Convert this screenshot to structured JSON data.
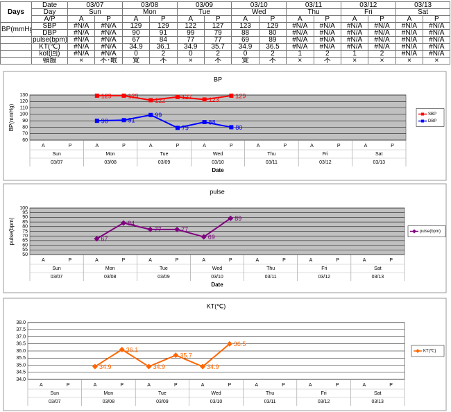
{
  "table": {
    "corner": "Days",
    "bp_label": "BP(mmHg)",
    "rows": [
      {
        "label": "Date",
        "cells": [
          "03/07",
          "03/08",
          "03/09",
          "03/10",
          "03/11",
          "03/12",
          "03/13"
        ]
      },
      {
        "label": "Day",
        "cells": [
          "Sun",
          "Mon",
          "Tue",
          "Wed",
          "Thu",
          "Fri",
          "Sat"
        ]
      },
      {
        "label": "A/P",
        "cells": [
          "A",
          "P",
          "A",
          "P",
          "A",
          "P",
          "A",
          "P",
          "A",
          "P",
          "A",
          "P",
          "A",
          "P"
        ]
      },
      {
        "label": "SBP",
        "cells": [
          "#N/A",
          "#N/A",
          "129",
          "129",
          "122",
          "127",
          "123",
          "129",
          "#N/A",
          "#N/A",
          "#N/A",
          "#N/A",
          "#N/A",
          "#N/A"
        ]
      },
      {
        "label": "DBP",
        "cells": [
          "#N/A",
          "#N/A",
          "90",
          "91",
          "99",
          "79",
          "88",
          "80",
          "#N/A",
          "#N/A",
          "#N/A",
          "#N/A",
          "#N/A",
          "#N/A"
        ]
      },
      {
        "label": "pulse(bpm)",
        "cells": [
          "#N/A",
          "#N/A",
          "67",
          "84",
          "77",
          "77",
          "69",
          "89",
          "#N/A",
          "#N/A",
          "#N/A",
          "#N/A",
          "#N/A",
          "#N/A"
        ]
      },
      {
        "label": "KT(℃)",
        "cells": [
          "#N/A",
          "#N/A",
          "34.9",
          "36.1",
          "34.9",
          "35.7",
          "34.9",
          "36.5",
          "#N/A",
          "#N/A",
          "#N/A",
          "#N/A",
          "#N/A",
          "#N/A"
        ]
      },
      {
        "label": "kot(回)",
        "cells": [
          "#N/A",
          "#N/A",
          "0",
          "2",
          "0",
          "2",
          "0",
          "2",
          "1",
          "2",
          "1",
          "2",
          "#N/A",
          "#N/A"
        ]
      },
      {
        "label": "頓服",
        "cells": [
          "×",
          "不･眠",
          "覚",
          "不",
          "×",
          "不",
          "覚",
          "不",
          "×",
          "不",
          "×",
          "×",
          "×",
          "×"
        ]
      }
    ]
  },
  "chart_data": [
    {
      "type": "line",
      "title": "BP",
      "ylabel": "BP(mmHg)",
      "xlabel": "Date",
      "categories": [
        "A",
        "P",
        "A",
        "P",
        "A",
        "P",
        "A",
        "P",
        "A",
        "P",
        "A",
        "P",
        "A",
        "P"
      ],
      "days": [
        "Sun",
        "Mon",
        "Tue",
        "Wed",
        "Thu",
        "Fri",
        "Sat"
      ],
      "dates": [
        "03/07",
        "03/08",
        "03/09",
        "03/10",
        "03/11",
        "03/12",
        "03/13"
      ],
      "series": [
        {
          "name": "SBP",
          "color": "#ff0000",
          "marker": "square",
          "values": [
            null,
            null,
            129,
            129,
            122,
            127,
            123,
            129,
            null,
            null,
            null,
            null,
            null,
            null
          ]
        },
        {
          "name": "DBP",
          "color": "#0000ff",
          "marker": "square",
          "values": [
            null,
            null,
            90,
            91,
            99,
            79,
            88,
            80,
            null,
            null,
            null,
            null,
            null,
            null
          ]
        }
      ],
      "ylim": [
        60,
        130
      ],
      "yticks": [
        60,
        70,
        80,
        90,
        100,
        110,
        120,
        130
      ],
      "grid": true,
      "background": "#c0c0c0",
      "legend": "right"
    },
    {
      "type": "line",
      "title": "pulse",
      "ylabel": "pulse(bpm)",
      "xlabel": "Date",
      "categories": [
        "A",
        "P",
        "A",
        "P",
        "A",
        "P",
        "A",
        "P",
        "A",
        "P",
        "A",
        "P",
        "A",
        "P"
      ],
      "days": [
        "Sun",
        "Mon",
        "Tue",
        "Wed",
        "Thu",
        "Fri",
        "Sat"
      ],
      "dates": [
        "03/07",
        "03/08",
        "03/09",
        "03/10",
        "03/11",
        "03/12",
        "03/13"
      ],
      "series": [
        {
          "name": "pulse(bpm)",
          "color": "#800080",
          "marker": "diamond",
          "values": [
            null,
            null,
            67,
            84,
            77,
            77,
            69,
            89,
            null,
            null,
            null,
            null,
            null,
            null
          ]
        }
      ],
      "ylim": [
        50,
        100
      ],
      "yticks": [
        50,
        55,
        60,
        65,
        70,
        75,
        80,
        85,
        90,
        95,
        100
      ],
      "grid": true,
      "background": "#c0c0c0",
      "legend": "right"
    },
    {
      "type": "line",
      "title": "KT(℃)",
      "categories": [
        "A",
        "P",
        "A",
        "P",
        "A",
        "P",
        "A",
        "P",
        "A",
        "P",
        "A",
        "P",
        "A",
        "P"
      ],
      "days": [
        "Sun",
        "Mon",
        "Tue",
        "Wed",
        "Thu",
        "Fri",
        "Sat"
      ],
      "dates": [
        "03/07",
        "03/08",
        "03/09",
        "03/10",
        "03/11",
        "03/12",
        "03/13"
      ],
      "series": [
        {
          "name": "KT(℃)",
          "color": "#ff6600",
          "marker": "diamond",
          "values": [
            null,
            null,
            34.9,
            36.1,
            34.9,
            35.7,
            34.9,
            36.5,
            null,
            null,
            null,
            null,
            null,
            null
          ]
        }
      ],
      "ylim": [
        34,
        38
      ],
      "yticks": [
        {
          "value": 34,
          "label": "34.0"
        },
        34.5,
        {
          "value": 35,
          "label": "35.0"
        },
        35.5,
        {
          "value": 36,
          "label": "36.0"
        },
        36.5,
        {
          "value": 37,
          "label": "37.0"
        },
        37.5,
        {
          "value": 38,
          "label": "38.0"
        }
      ],
      "grid": true,
      "background": "#ffffff",
      "legend": "right"
    }
  ]
}
